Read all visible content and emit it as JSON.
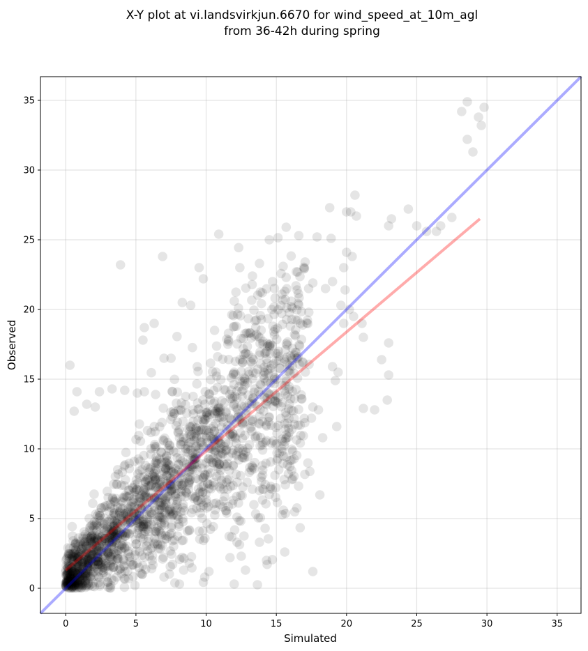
{
  "chart_data": {
    "type": "scatter",
    "title_line1": "X-Y plot at vi.landsvirkjun.6670 for wind_speed_at_10m_agl",
    "title_line2": "from 36-42h during spring",
    "xlabel": "Simulated",
    "ylabel": "Observed",
    "xlim": [
      -1.8,
      36.7
    ],
    "ylim": [
      -1.8,
      36.7
    ],
    "xticks": [
      0,
      5,
      10,
      15,
      20,
      25,
      30,
      35
    ],
    "yticks": [
      0,
      5,
      10,
      15,
      20,
      25,
      30,
      35
    ],
    "grid": true,
    "point_color": "#000000",
    "point_alpha": 0.1,
    "identity_line": {
      "color": "#0000ff",
      "from": [
        -1.8,
        -1.8
      ],
      "to": [
        36.7,
        36.7
      ]
    },
    "regression_line": {
      "color": "#ff0000",
      "from": [
        0,
        1.3
      ],
      "to": [
        29.5,
        26.5
      ]
    },
    "points": [
      [
        0.3,
        16.0
      ],
      [
        3.9,
        23.2
      ],
      [
        6.9,
        23.8
      ],
      [
        9.5,
        23.0
      ],
      [
        9.8,
        22.2
      ],
      [
        10.9,
        25.4
      ],
      [
        12.4,
        23.0
      ],
      [
        13.8,
        23.3
      ],
      [
        14.5,
        25.0
      ],
      [
        15.7,
        25.9
      ],
      [
        16.6,
        25.3
      ],
      [
        17.9,
        25.2
      ],
      [
        18.8,
        27.3
      ],
      [
        18.9,
        25.1
      ],
      [
        20.0,
        27.0
      ],
      [
        20.3,
        27.0
      ],
      [
        20.6,
        28.2
      ],
      [
        20.7,
        26.7
      ],
      [
        23.0,
        26.0
      ],
      [
        23.2,
        26.5
      ],
      [
        24.4,
        27.2
      ],
      [
        25.0,
        26.0
      ],
      [
        25.7,
        25.6
      ],
      [
        26.4,
        25.6
      ],
      [
        26.7,
        26.0
      ],
      [
        27.5,
        26.6
      ],
      [
        28.2,
        34.2
      ],
      [
        28.6,
        34.9
      ],
      [
        28.6,
        32.2
      ],
      [
        29.0,
        31.3
      ],
      [
        29.4,
        33.8
      ],
      [
        29.6,
        33.2
      ],
      [
        29.8,
        34.5
      ],
      [
        22.5,
        16.4
      ],
      [
        22.9,
        13.5
      ],
      [
        23.0,
        15.3
      ],
      [
        23.0,
        17.6
      ],
      [
        21.2,
        12.9
      ],
      [
        22.0,
        12.8
      ],
      [
        18.3,
        10.8
      ],
      [
        17.6,
        1.2
      ],
      [
        15.6,
        2.6
      ],
      [
        18.1,
        6.7
      ],
      [
        16.1,
        7.8
      ],
      [
        14.9,
        8.1
      ],
      [
        15.5,
        5.6
      ],
      [
        14.2,
        4.3
      ],
      [
        12.0,
        0.3
      ],
      [
        12.8,
        1.3
      ],
      [
        12.5,
        2.3
      ],
      [
        19.6,
        20.3
      ],
      [
        19.9,
        21.4
      ],
      [
        20.2,
        20.0
      ],
      [
        19.8,
        19.0
      ],
      [
        20.5,
        19.5
      ],
      [
        21.1,
        19.0
      ],
      [
        21.2,
        18.0
      ],
      [
        20.0,
        24.1
      ],
      [
        20.4,
        23.8
      ],
      [
        19.8,
        23.0
      ],
      [
        18.5,
        21.5
      ],
      [
        19.0,
        22.0
      ],
      [
        17.3,
        21.5
      ],
      [
        17.6,
        21.9
      ],
      [
        16.4,
        21.7
      ],
      [
        15.7,
        22.3
      ],
      [
        15.4,
        21.1
      ],
      [
        14.0,
        21.2
      ],
      [
        13.3,
        22.4
      ],
      [
        12.3,
        20.1
      ],
      [
        11.6,
        17.8
      ],
      [
        10.6,
        18.5
      ],
      [
        8.3,
        20.5
      ],
      [
        8.9,
        20.3
      ],
      [
        6.3,
        19.0
      ],
      [
        5.6,
        18.7
      ],
      [
        5.5,
        17.8
      ],
      [
        1.5,
        13.2
      ],
      [
        2.1,
        13.0
      ],
      [
        2.4,
        14.1
      ],
      [
        0.8,
        14.1
      ],
      [
        0.6,
        12.7
      ],
      [
        4.2,
        14.2
      ],
      [
        3.3,
        14.3
      ],
      [
        5.1,
        14.0
      ],
      [
        5.6,
        14.1
      ],
      [
        7.0,
        16.5
      ],
      [
        7.5,
        16.5
      ],
      [
        6.4,
        13.9
      ],
      [
        7.6,
        14.1
      ],
      [
        19.0,
        15.9
      ],
      [
        19.2,
        14.9
      ],
      [
        19.4,
        15.5
      ],
      [
        19.3,
        11.6
      ],
      [
        18.0,
        12.8
      ],
      [
        17.5,
        12.2
      ],
      [
        17.6,
        13.0
      ],
      [
        16.3,
        13.6
      ],
      [
        16.7,
        11.7
      ],
      [
        15.7,
        11.0
      ],
      [
        15.7,
        12.4
      ],
      [
        15.2,
        9.7
      ],
      [
        16.1,
        9.2
      ],
      [
        14.3,
        10.6
      ],
      [
        14.0,
        8.8
      ],
      [
        14.7,
        7.1
      ],
      [
        13.3,
        7.1
      ],
      [
        13.4,
        6.0
      ],
      [
        12.2,
        5.1
      ],
      [
        12.2,
        3.3
      ],
      [
        13.8,
        3.3
      ],
      [
        14.3,
        2.0
      ],
      [
        11.7,
        2.2
      ],
      [
        10.2,
        1.2
      ],
      [
        9.9,
        0.8
      ],
      [
        8.8,
        1.8
      ],
      [
        8.4,
        1.3
      ],
      [
        8.1,
        0.3
      ],
      [
        7.0,
        0.8
      ],
      [
        6.9,
        2.1
      ]
    ]
  }
}
